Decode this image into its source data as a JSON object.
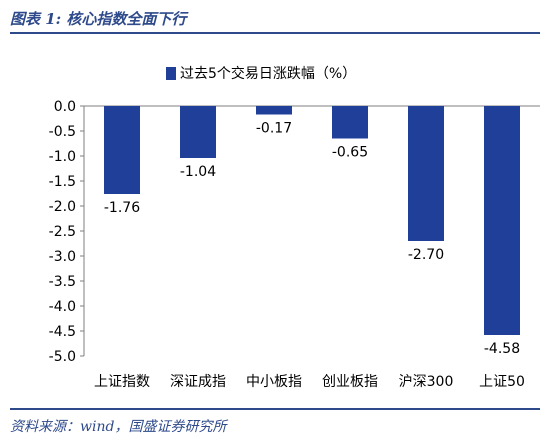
{
  "header": {
    "title": "图表 1:    核心指数全面下行"
  },
  "footer": {
    "source": "资料来源：wind，国盛证券研究所"
  },
  "colors": {
    "accent": "#2e4a8b",
    "bar": "#1f3f99"
  },
  "chart_data": {
    "type": "bar",
    "categories": [
      "上证指数",
      "深证成指",
      "中小板指",
      "创业板指",
      "沪深300",
      "上证50"
    ],
    "series": [
      {
        "name": "过去5个交易日涨跌幅（%）",
        "values": [
          -1.76,
          -1.04,
          -0.17,
          -0.65,
          -2.7,
          -4.58
        ]
      }
    ],
    "data_labels": [
      "-1.76",
      "-1.04",
      "-0.17",
      "-0.65",
      "-2.70",
      "-4.58"
    ],
    "ylim": [
      -5.0,
      0.0
    ],
    "yticks": [
      0.0,
      -0.5,
      -1.0,
      -1.5,
      -2.0,
      -2.5,
      -3.0,
      -3.5,
      -4.0,
      -4.5,
      -5.0
    ],
    "ytick_labels": [
      "0.0",
      "-0.5",
      "-1.0",
      "-1.5",
      "-2.0",
      "-2.5",
      "-3.0",
      "-3.5",
      "-4.0",
      "-4.5",
      "-5.0"
    ],
    "xlabel": "",
    "ylabel": "",
    "grid": false,
    "legend_position": "top"
  }
}
